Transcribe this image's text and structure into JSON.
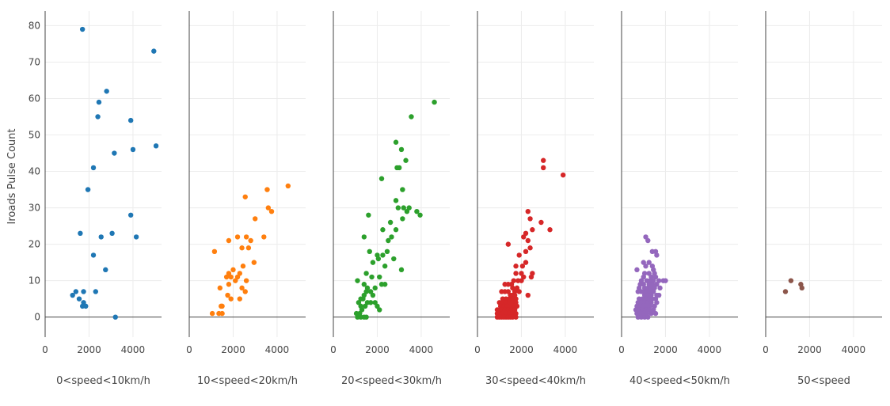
{
  "chart_data": {
    "type": "scatter",
    "ylabel": "Iroads Pulse Count",
    "ylim": [
      -5.5,
      84
    ],
    "xlim": [
      0,
      5300
    ],
    "yticks": [
      0,
      10,
      20,
      30,
      40,
      50,
      60,
      70,
      80
    ],
    "xticks": [
      0,
      2000,
      4000
    ],
    "grid": true,
    "panels": [
      {
        "name": "0<speed<10km/h",
        "color": "#1f77b4",
        "points": [
          [
            1700,
            79
          ],
          [
            4950,
            73
          ],
          [
            2800,
            62
          ],
          [
            2450,
            59
          ],
          [
            2400,
            55
          ],
          [
            3900,
            54
          ],
          [
            5050,
            47
          ],
          [
            4000,
            46
          ],
          [
            3150,
            45
          ],
          [
            2200,
            41
          ],
          [
            1950,
            35
          ],
          [
            3900,
            28
          ],
          [
            1600,
            23
          ],
          [
            2550,
            22
          ],
          [
            3050,
            23
          ],
          [
            4150,
            22
          ],
          [
            2200,
            17
          ],
          [
            2750,
            13
          ],
          [
            1400,
            7
          ],
          [
            1750,
            7
          ],
          [
            2300,
            7
          ],
          [
            1250,
            6
          ],
          [
            1550,
            5
          ],
          [
            1750,
            4
          ],
          [
            1700,
            3
          ],
          [
            1850,
            3
          ],
          [
            3200,
            0
          ]
        ]
      },
      {
        "name": "10<speed<20km/h",
        "color": "#ff7f0e",
        "points": [
          [
            4500,
            36
          ],
          [
            3550,
            35
          ],
          [
            2550,
            33
          ],
          [
            3600,
            30
          ],
          [
            3750,
            29
          ],
          [
            3000,
            27
          ],
          [
            2200,
            22
          ],
          [
            2600,
            22
          ],
          [
            3400,
            22
          ],
          [
            2800,
            21
          ],
          [
            1800,
            21
          ],
          [
            2400,
            19
          ],
          [
            2700,
            19
          ],
          [
            1150,
            18
          ],
          [
            2000,
            13
          ],
          [
            1800,
            12
          ],
          [
            2300,
            12
          ],
          [
            2450,
            14
          ],
          [
            2950,
            15
          ],
          [
            1700,
            11
          ],
          [
            1900,
            11
          ],
          [
            2200,
            11
          ],
          [
            2100,
            10
          ],
          [
            2600,
            10
          ],
          [
            1800,
            9
          ],
          [
            1400,
            8
          ],
          [
            2400,
            8
          ],
          [
            2550,
            7
          ],
          [
            1750,
            6
          ],
          [
            1900,
            5
          ],
          [
            2300,
            5
          ],
          [
            1500,
            3
          ],
          [
            1450,
            3
          ],
          [
            1050,
            1
          ],
          [
            1350,
            1
          ],
          [
            1500,
            1
          ]
        ]
      },
      {
        "name": "20<speed<30km/h",
        "color": "#2ca02c",
        "points": [
          [
            4600,
            59
          ],
          [
            3550,
            55
          ],
          [
            2850,
            48
          ],
          [
            3100,
            46
          ],
          [
            3300,
            43
          ],
          [
            2900,
            41
          ],
          [
            3000,
            41
          ],
          [
            2200,
            38
          ],
          [
            3150,
            35
          ],
          [
            2850,
            32
          ],
          [
            3950,
            28
          ],
          [
            2950,
            30
          ],
          [
            3200,
            30
          ],
          [
            3450,
            30
          ],
          [
            3350,
            29
          ],
          [
            3800,
            29
          ],
          [
            1600,
            28
          ],
          [
            3150,
            27
          ],
          [
            2600,
            26
          ],
          [
            2250,
            24
          ],
          [
            2850,
            24
          ],
          [
            2650,
            22
          ],
          [
            1400,
            22
          ],
          [
            2500,
            21
          ],
          [
            1650,
            18
          ],
          [
            2000,
            17
          ],
          [
            2250,
            17
          ],
          [
            2450,
            18
          ],
          [
            2050,
            16
          ],
          [
            2750,
            16
          ],
          [
            3100,
            13
          ],
          [
            1800,
            15
          ],
          [
            2350,
            14
          ],
          [
            1500,
            12
          ],
          [
            1750,
            11
          ],
          [
            2100,
            11
          ],
          [
            2200,
            9
          ],
          [
            2350,
            9
          ],
          [
            1100,
            10
          ],
          [
            1400,
            9
          ],
          [
            1550,
            8
          ],
          [
            1700,
            7
          ],
          [
            1900,
            8
          ],
          [
            1500,
            7
          ],
          [
            1250,
            5
          ],
          [
            1400,
            6
          ],
          [
            1800,
            6
          ],
          [
            1350,
            5
          ],
          [
            1150,
            4
          ],
          [
            1550,
            4
          ],
          [
            1700,
            4
          ],
          [
            1900,
            4
          ],
          [
            1250,
            3
          ],
          [
            1450,
            3
          ],
          [
            1300,
            2
          ],
          [
            2100,
            2
          ],
          [
            1050,
            1
          ],
          [
            1200,
            1
          ],
          [
            1100,
            0
          ],
          [
            1250,
            0
          ],
          [
            1400,
            0
          ],
          [
            1500,
            0
          ],
          [
            2000,
            3
          ]
        ]
      },
      {
        "name": "30<speed<40km/h",
        "color": "#d62728",
        "points": [
          [
            3000,
            43
          ],
          [
            3000,
            41
          ],
          [
            3900,
            39
          ],
          [
            2300,
            29
          ],
          [
            2400,
            27
          ],
          [
            2900,
            26
          ],
          [
            3300,
            24
          ],
          [
            2200,
            23
          ],
          [
            2500,
            24
          ],
          [
            2300,
            21
          ],
          [
            2100,
            22
          ],
          [
            2400,
            19
          ],
          [
            1400,
            20
          ],
          [
            2200,
            18
          ],
          [
            1900,
            17
          ],
          [
            2200,
            15
          ],
          [
            1750,
            14
          ],
          [
            2050,
            14
          ],
          [
            2500,
            12
          ],
          [
            2000,
            12
          ],
          [
            1750,
            12
          ],
          [
            2100,
            11
          ],
          [
            2450,
            11
          ],
          [
            1650,
            10
          ],
          [
            1850,
            10
          ],
          [
            2000,
            10
          ],
          [
            1250,
            9
          ],
          [
            1400,
            9
          ],
          [
            1550,
            9
          ],
          [
            1600,
            8
          ],
          [
            1700,
            7
          ],
          [
            1800,
            8
          ],
          [
            1900,
            7
          ],
          [
            1100,
            7
          ],
          [
            1250,
            7
          ],
          [
            1400,
            7
          ],
          [
            1500,
            6
          ],
          [
            1600,
            6
          ],
          [
            1700,
            6
          ],
          [
            2300,
            6
          ],
          [
            1150,
            5
          ],
          [
            1300,
            5
          ],
          [
            1450,
            5
          ],
          [
            1600,
            5
          ],
          [
            1750,
            5
          ],
          [
            1000,
            4
          ],
          [
            1150,
            4
          ],
          [
            1300,
            4
          ],
          [
            1450,
            4
          ],
          [
            1600,
            4
          ],
          [
            1750,
            4
          ],
          [
            1050,
            3
          ],
          [
            1200,
            3
          ],
          [
            1350,
            3
          ],
          [
            1500,
            3
          ],
          [
            1650,
            3
          ],
          [
            1800,
            3
          ],
          [
            900,
            2
          ],
          [
            1000,
            2
          ],
          [
            1100,
            2
          ],
          [
            1250,
            2
          ],
          [
            1400,
            2
          ],
          [
            1550,
            2
          ],
          [
            1700,
            2
          ],
          [
            900,
            1
          ],
          [
            1000,
            1
          ],
          [
            1150,
            1
          ],
          [
            1300,
            1
          ],
          [
            1450,
            1
          ],
          [
            1600,
            1
          ],
          [
            1750,
            1
          ],
          [
            900,
            0
          ],
          [
            1000,
            0
          ],
          [
            1100,
            0
          ],
          [
            1200,
            0
          ],
          [
            1300,
            0
          ],
          [
            1400,
            0
          ],
          [
            1500,
            0
          ],
          [
            1600,
            0
          ],
          [
            1750,
            0
          ]
        ]
      },
      {
        "name": "40<speed<50km/h",
        "color": "#9467bd",
        "points": [
          [
            1100,
            22
          ],
          [
            1200,
            21
          ],
          [
            1400,
            18
          ],
          [
            1550,
            18
          ],
          [
            1600,
            17
          ],
          [
            1000,
            15
          ],
          [
            1250,
            15
          ],
          [
            1400,
            14
          ],
          [
            1100,
            14
          ],
          [
            700,
            13
          ],
          [
            1450,
            13
          ],
          [
            1500,
            12
          ],
          [
            1050,
            12
          ],
          [
            1250,
            12
          ],
          [
            1350,
            11
          ],
          [
            1550,
            11
          ],
          [
            1000,
            11
          ],
          [
            1150,
            10
          ],
          [
            1300,
            10
          ],
          [
            1450,
            10
          ],
          [
            1700,
            10
          ],
          [
            1900,
            10
          ],
          [
            2000,
            10
          ],
          [
            900,
            10
          ],
          [
            850,
            9
          ],
          [
            1000,
            9
          ],
          [
            1250,
            9
          ],
          [
            1400,
            9
          ],
          [
            1600,
            9
          ],
          [
            1750,
            8
          ],
          [
            1200,
            8
          ],
          [
            1050,
            8
          ],
          [
            1350,
            8
          ],
          [
            1500,
            8
          ],
          [
            800,
            8
          ],
          [
            1000,
            7
          ],
          [
            1150,
            7
          ],
          [
            1300,
            7
          ],
          [
            1450,
            7
          ],
          [
            1600,
            6
          ],
          [
            750,
            7
          ],
          [
            900,
            7
          ],
          [
            1050,
            6
          ],
          [
            1200,
            6
          ],
          [
            1350,
            6
          ],
          [
            1550,
            5
          ],
          [
            1700,
            6
          ],
          [
            800,
            5
          ],
          [
            950,
            5
          ],
          [
            1100,
            5
          ],
          [
            1250,
            5
          ],
          [
            1400,
            5
          ],
          [
            1600,
            4
          ],
          [
            750,
            4
          ],
          [
            900,
            4
          ],
          [
            1050,
            4
          ],
          [
            1200,
            4
          ],
          [
            1350,
            4
          ],
          [
            1500,
            3
          ],
          [
            700,
            3
          ],
          [
            850,
            3
          ],
          [
            1000,
            3
          ],
          [
            1150,
            3
          ],
          [
            1300,
            3
          ],
          [
            1450,
            2
          ],
          [
            650,
            2
          ],
          [
            800,
            2
          ],
          [
            950,
            2
          ],
          [
            1100,
            2
          ],
          [
            1250,
            2
          ],
          [
            1350,
            1
          ],
          [
            700,
            1
          ],
          [
            850,
            1
          ],
          [
            1000,
            1
          ],
          [
            1150,
            1
          ],
          [
            1550,
            1
          ],
          [
            750,
            0
          ],
          [
            900,
            0
          ],
          [
            1050,
            0
          ],
          [
            1200,
            0
          ]
        ]
      },
      {
        "name": "50<speed",
        "color": "#8c564b",
        "points": [
          [
            1150,
            10
          ],
          [
            1600,
            9
          ],
          [
            1650,
            8
          ],
          [
            900,
            7
          ]
        ]
      }
    ]
  }
}
